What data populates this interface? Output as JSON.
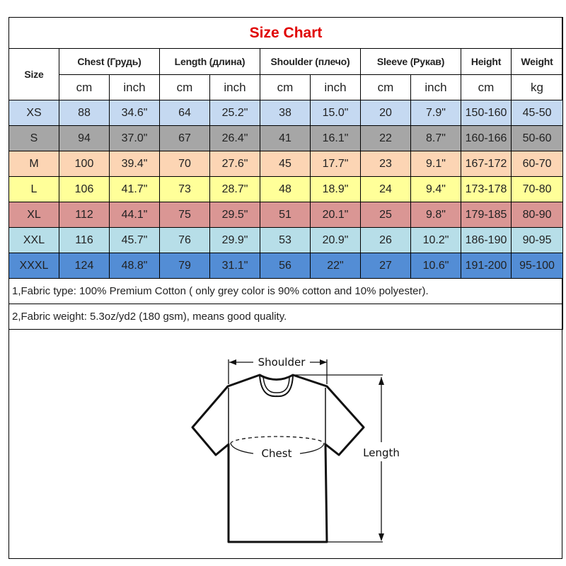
{
  "title": "Size Chart",
  "header": {
    "size": "Size",
    "groups": [
      "Chest  (Грудь)",
      "Length (длина)",
      "Shoulder (плечо)",
      "Sleeve (Рукав)",
      "Height",
      "Weight"
    ],
    "units": [
      "cm",
      "inch",
      "cm",
      "inch",
      "cm",
      "inch",
      "cm",
      "inch",
      "cm",
      "kg"
    ]
  },
  "rows": [
    {
      "size": "XS",
      "color": "#c5d9f1",
      "values": [
        "88",
        "34.6\"",
        "64",
        "25.2\"",
        "38",
        "15.0\"",
        "20",
        "7.9\"",
        "150-160",
        "45-50"
      ]
    },
    {
      "size": "S",
      "color": "#a6a6a6",
      "values": [
        "94",
        "37.0\"",
        "67",
        "26.4\"",
        "41",
        "16.1\"",
        "22",
        "8.7\"",
        "160-166",
        "50-60"
      ]
    },
    {
      "size": "M",
      "color": "#fcd5b4",
      "values": [
        "100",
        "39.4\"",
        "70",
        "27.6\"",
        "45",
        "17.7\"",
        "23",
        "9.1\"",
        "167-172",
        "60-70"
      ]
    },
    {
      "size": "L",
      "color": "#ffff99",
      "values": [
        "106",
        "41.7\"",
        "73",
        "28.7\"",
        "48",
        "18.9\"",
        "24",
        "9.4\"",
        "173-178",
        "70-80"
      ]
    },
    {
      "size": "XL",
      "color": "#da9694",
      "values": [
        "112",
        "44.1\"",
        "75",
        "29.5\"",
        "51",
        "20.1\"",
        "25",
        "9.8\"",
        "179-185",
        "80-90"
      ]
    },
    {
      "size": "XXL",
      "color": "#b7dee8",
      "values": [
        "116",
        "45.7\"",
        "76",
        "29.9\"",
        "53",
        "20.9\"",
        "26",
        "10.2\"",
        "186-190",
        "90-95"
      ]
    },
    {
      "size": "XXXL",
      "color": "#538dd5",
      "values": [
        "124",
        "48.8\"",
        "79",
        "31.1\"",
        "56",
        "22\"",
        "27",
        "10.6\"",
        "191-200",
        "95-100"
      ]
    }
  ],
  "notes": [
    "1,Fabric type: 100% Premium Cotton ( only grey color is 90% cotton and 10% polyester).",
    "2,Fabric weight: 5.3oz/yd2 (180 gsm), means good quality."
  ],
  "diagram": {
    "shoulder": "Shoulder",
    "chest": "Chest",
    "length": "Length"
  }
}
